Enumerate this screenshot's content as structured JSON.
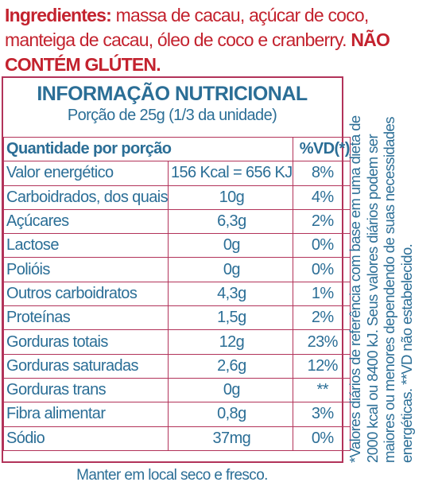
{
  "ingredients": {
    "label": "Ingredientes:",
    "text": "massa de cacau, açúcar de coco, manteiga de cacau, óleo de coco e cranberry.",
    "warning": "NÃO CONTÉM GLÚTEN."
  },
  "nutrition": {
    "title": "INFORMAÇÃO NUTRICIONAL",
    "serving": "Porção de 25g (1/3 da unidade)",
    "header_left": "Quantidade por porção",
    "header_right": "%VD(*)",
    "rows": [
      {
        "name": "Valor energético",
        "qty": "156 Kcal = 656 KJ",
        "vd": "8%"
      },
      {
        "name": "Carboidrados, dos quais",
        "qty": "10g",
        "vd": "4%"
      },
      {
        "name": "Açúcares",
        "qty": "6,3g",
        "vd": "2%"
      },
      {
        "name": "Lactose",
        "qty": "0g",
        "vd": "0%"
      },
      {
        "name": "Polióis",
        "qty": "0g",
        "vd": "0%"
      },
      {
        "name": "Outros carboidratos",
        "qty": "4,3g",
        "vd": "1%"
      },
      {
        "name": "Proteínas",
        "qty": "1,5g",
        "vd": "2%"
      },
      {
        "name": "Gorduras totais",
        "qty": "12g",
        "vd": "23%"
      },
      {
        "name": "Gorduras saturadas",
        "qty": "2,6g",
        "vd": "12%"
      },
      {
        "name": "Gorduras trans",
        "qty": "0g",
        "vd": "**"
      },
      {
        "name": "Fibra alimentar",
        "qty": "0,8g",
        "vd": "3%"
      },
      {
        "name": "Sódio",
        "qty": "37mg",
        "vd": "0%"
      }
    ],
    "footnote": "*Valores diários de referência com base em uma dieta de 2000 kcal ou 8400 kJ. Seus valores diários podem ser maiores ou menores dependendo de suas necessidades energéticas. **VD não estabelecido."
  },
  "storage": "Manter em local seco e fresco."
}
